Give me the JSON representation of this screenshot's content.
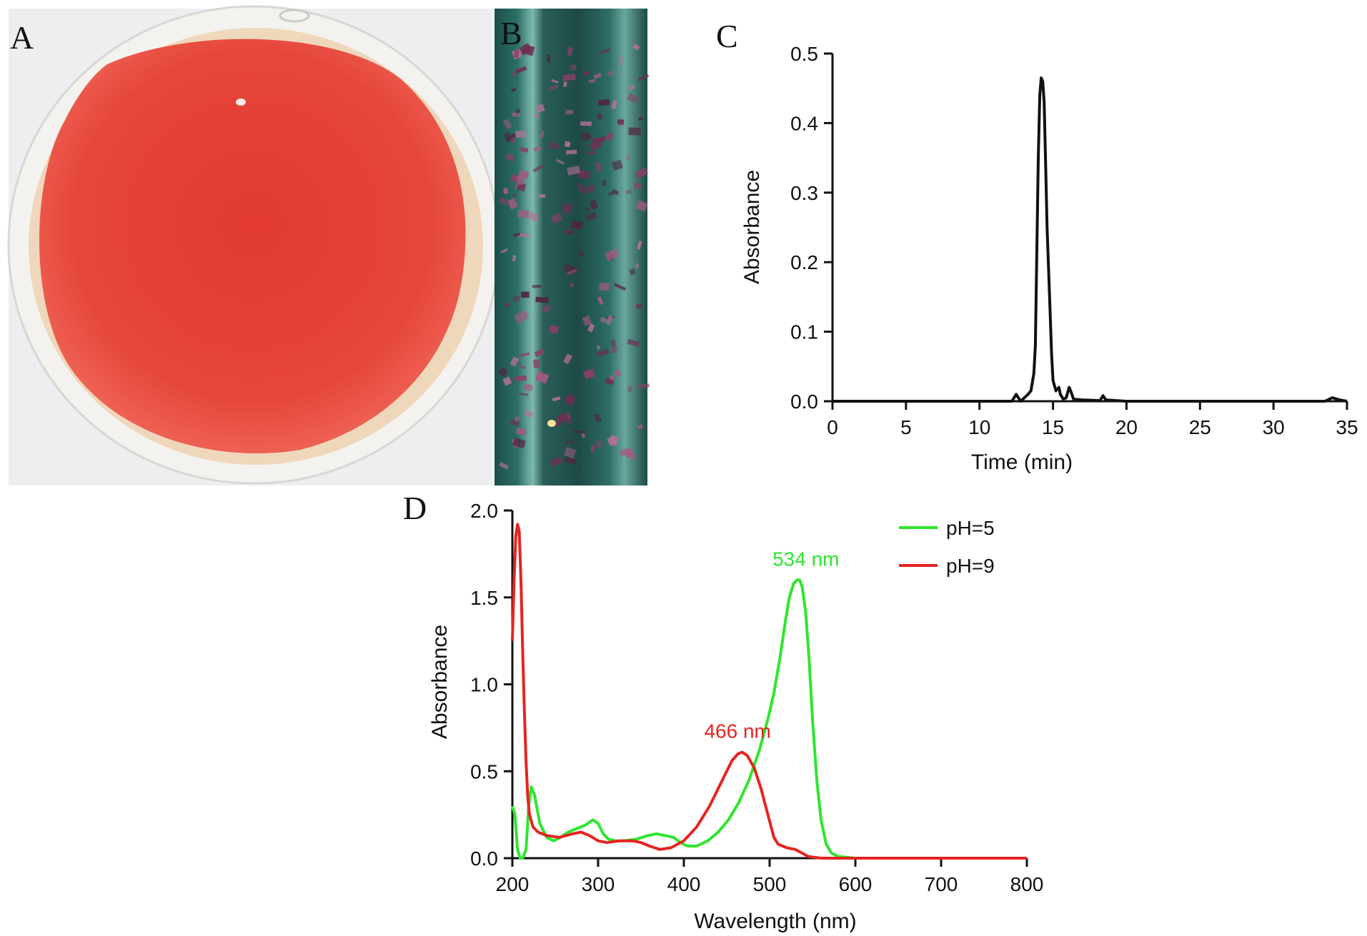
{
  "panels": {
    "a": {
      "letter": "A"
    },
    "b": {
      "letter": "B"
    },
    "c": {
      "letter": "C"
    },
    "d": {
      "letter": "D"
    }
  },
  "colors": {
    "pigment_red": "#e0392f",
    "agar_rim": "#efd9bf",
    "tube_teal": "#1f5e58",
    "crystal_purple": "#8a3f68",
    "series_green": "#2ee62e",
    "series_red": "#e52421",
    "axis": "#111111"
  },
  "chart_data": [
    {
      "panel": "C",
      "type": "line",
      "xlabel": "Time (min)",
      "ylabel": "Absorbance",
      "xlim": [
        0,
        35
      ],
      "ylim": [
        0,
        0.5
      ],
      "xticks": [
        0,
        5,
        10,
        15,
        20,
        25,
        30,
        35
      ],
      "yticks": [
        0.0,
        0.1,
        0.2,
        0.3,
        0.4,
        0.5
      ],
      "xtick_labels": [
        "0",
        "5",
        "10",
        "15",
        "20",
        "25",
        "30",
        "35"
      ],
      "ytick_labels": [
        "0.0",
        "0.1",
        "0.2",
        "0.3",
        "0.4",
        "0.5"
      ],
      "grid": false,
      "series": [
        {
          "color": "#111111",
          "x": [
            0,
            10,
            12.2,
            12.5,
            12.8,
            13.3,
            13.5,
            13.7,
            13.8,
            14.0,
            14.1,
            14.2,
            14.3,
            14.4,
            14.5,
            14.6,
            14.7,
            14.8,
            14.9,
            15.0,
            15.2,
            15.4,
            15.5,
            15.7,
            15.9,
            16.1,
            16.2,
            16.4,
            17.0,
            18.2,
            18.4,
            18.6,
            20,
            33.5,
            34,
            34.5,
            35
          ],
          "y": [
            0,
            0,
            0,
            0.01,
            0,
            0.01,
            0.015,
            0.04,
            0.08,
            0.35,
            0.44,
            0.465,
            0.46,
            0.43,
            0.34,
            0.25,
            0.19,
            0.13,
            0.07,
            0.03,
            0.015,
            0.02,
            0.01,
            0.003,
            0.005,
            0.02,
            0.015,
            0.003,
            0.002,
            0.001,
            0.008,
            0.002,
            0,
            0,
            0.005,
            0.002,
            0
          ]
        }
      ]
    },
    {
      "panel": "D",
      "type": "line",
      "xlabel": "Wavelength (nm)",
      "ylabel": "Absorbance",
      "xlim": [
        200,
        800
      ],
      "ylim": [
        0,
        2.0
      ],
      "xticks": [
        200,
        300,
        400,
        500,
        600,
        700,
        800
      ],
      "yticks": [
        0.0,
        0.5,
        1.0,
        1.5,
        2.0
      ],
      "xtick_labels": [
        "200",
        "300",
        "400",
        "500",
        "600",
        "700",
        "800"
      ],
      "ytick_labels": [
        "0.0",
        "0.5",
        "1.0",
        "1.5",
        "2.0"
      ],
      "grid": false,
      "legend_position": "top-right",
      "annotations": [
        {
          "text": "534 nm",
          "x": 534,
          "y": 1.6,
          "series": "pH=5"
        },
        {
          "text": "466 nm",
          "x": 466,
          "y": 0.61,
          "series": "pH=9"
        }
      ],
      "series": [
        {
          "name": "pH=5",
          "color": "#2ee62e",
          "x": [
            200,
            203,
            206,
            209,
            212,
            216,
            219,
            222,
            226,
            232,
            240,
            248,
            256,
            265,
            275,
            285,
            294,
            300,
            306,
            312,
            320,
            330,
            345,
            358,
            368,
            378,
            388,
            396,
            404,
            415,
            428,
            440,
            452,
            464,
            476,
            488,
            498,
            505,
            512,
            518,
            523,
            528,
            532,
            535,
            538,
            542,
            546,
            550,
            555,
            560,
            566,
            572,
            580,
            590,
            600,
            650,
            700,
            750,
            800
          ],
          "y": [
            0.3,
            0.25,
            0.05,
            0.0,
            0.0,
            0.05,
            0.3,
            0.41,
            0.36,
            0.2,
            0.12,
            0.1,
            0.12,
            0.15,
            0.17,
            0.19,
            0.22,
            0.2,
            0.14,
            0.11,
            0.1,
            0.1,
            0.11,
            0.13,
            0.14,
            0.13,
            0.12,
            0.09,
            0.07,
            0.07,
            0.1,
            0.15,
            0.22,
            0.32,
            0.45,
            0.62,
            0.8,
            0.95,
            1.15,
            1.35,
            1.5,
            1.58,
            1.6,
            1.6,
            1.56,
            1.42,
            1.15,
            0.8,
            0.45,
            0.22,
            0.08,
            0.03,
            0.01,
            0.005,
            0.0,
            0.0,
            0.0,
            0.0,
            0.0
          ]
        },
        {
          "name": "pH=9",
          "color": "#e52421",
          "x": [
            200,
            202,
            204,
            206,
            208,
            210,
            212,
            214,
            216,
            218,
            220,
            224,
            230,
            240,
            255,
            270,
            280,
            290,
            300,
            310,
            325,
            340,
            350,
            360,
            372,
            385,
            400,
            415,
            430,
            445,
            456,
            463,
            468,
            474,
            482,
            490,
            498,
            505,
            510,
            520,
            530,
            545,
            560,
            600,
            650,
            700,
            750,
            800
          ],
          "y": [
            1.25,
            1.6,
            1.85,
            1.92,
            1.88,
            1.6,
            1.2,
            0.85,
            0.55,
            0.35,
            0.25,
            0.18,
            0.15,
            0.13,
            0.12,
            0.14,
            0.15,
            0.13,
            0.1,
            0.09,
            0.1,
            0.1,
            0.09,
            0.07,
            0.05,
            0.06,
            0.1,
            0.18,
            0.3,
            0.45,
            0.56,
            0.6,
            0.61,
            0.59,
            0.52,
            0.4,
            0.25,
            0.12,
            0.08,
            0.06,
            0.05,
            0.01,
            0.0,
            0.0,
            0.0,
            0.0,
            0.0,
            0.0
          ]
        }
      ]
    }
  ]
}
